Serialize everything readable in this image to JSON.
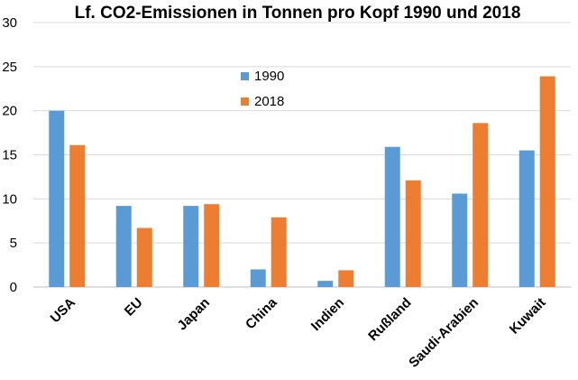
{
  "chart_data": {
    "type": "bar",
    "title": "Lf. CO2-Emissionen in Tonnen pro Kopf 1990 und 2018",
    "xlabel": "",
    "ylabel": "",
    "ylim": [
      0,
      30
    ],
    "yticks": [
      0,
      5,
      10,
      15,
      20,
      25,
      30
    ],
    "grid": true,
    "legend_position": "top-center",
    "categories": [
      "USA",
      "EU",
      "Japan",
      "China",
      "Indien",
      "Rußland",
      "Saudi-Arabien",
      "Kuwait"
    ],
    "series": [
      {
        "name": "1990",
        "color": "#5b9bd5",
        "values": [
          20.0,
          9.2,
          9.2,
          2.0,
          0.7,
          15.9,
          10.6,
          15.5
        ]
      },
      {
        "name": "2018",
        "color": "#ed7d31",
        "values": [
          16.1,
          6.7,
          9.4,
          7.9,
          1.9,
          12.1,
          18.6,
          23.9
        ]
      }
    ]
  }
}
